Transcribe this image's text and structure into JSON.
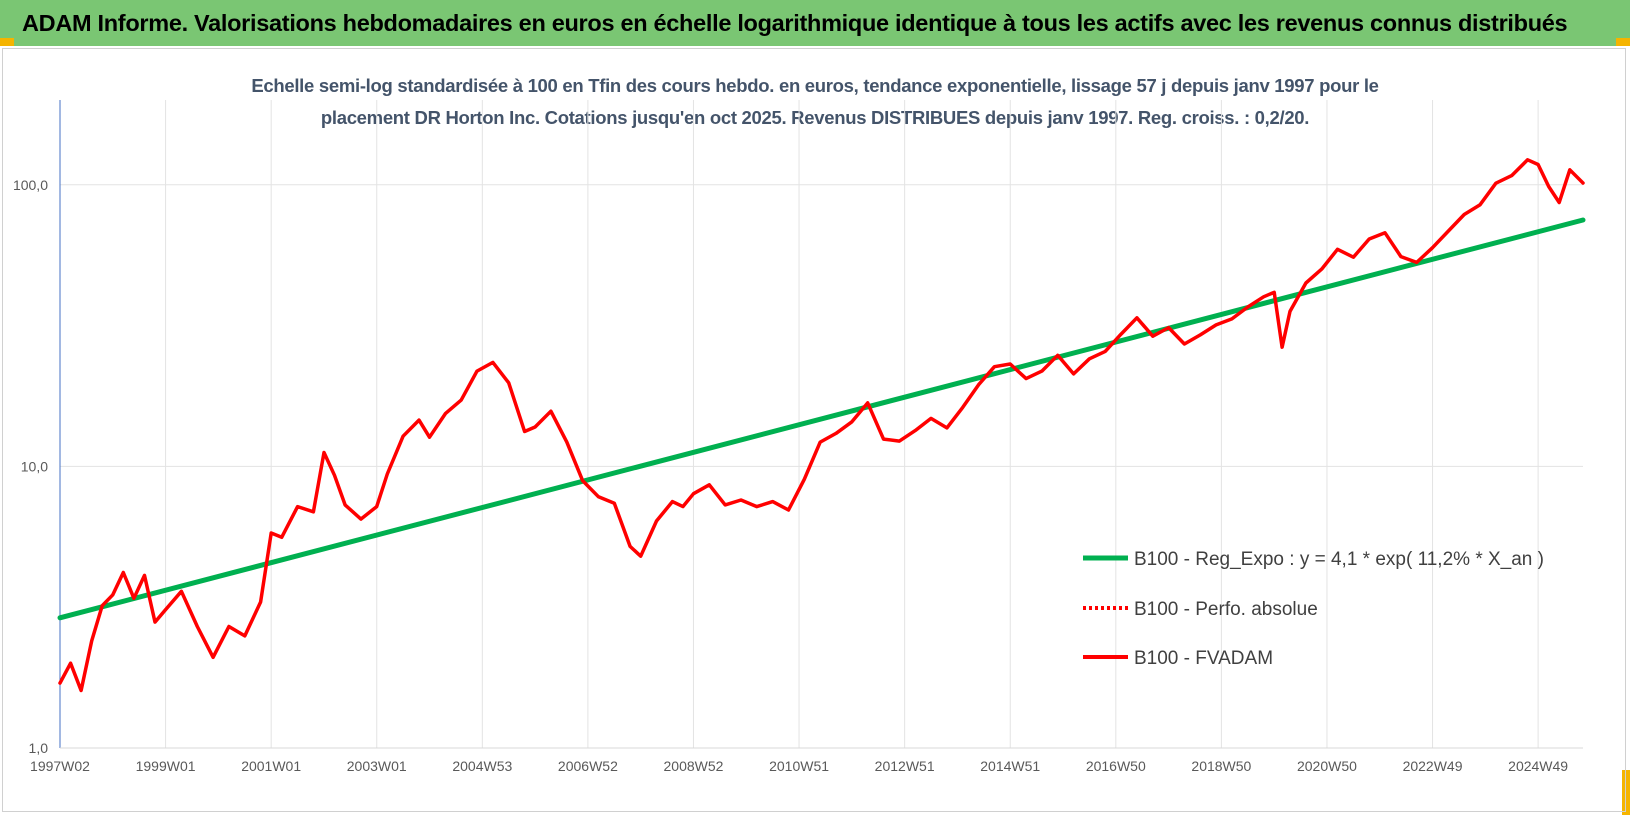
{
  "banner": {
    "title": "ADAM Informe. Valorisations hebdomadaires en euros en échelle logarithmique identique à tous les actifs avec les revenus connus distribués",
    "bg_color": "#7ac673"
  },
  "chart_data": {
    "type": "line",
    "title_line1": "Echelle semi-log standardisée à 100 en Tfin des cours hebdo. en euros, tendance exponentielle, lissage 57 j depuis janv 1997 pour le",
    "title_line2": "placement DR Horton Inc. Cotations jusqu'en oct 2025. Revenus DISTRIBUES depuis janv 1997. Reg. croiss. : 0,2/20.",
    "y_scale": "log",
    "ylim": [
      1,
      200
    ],
    "y_ticks": [
      {
        "value": 1,
        "label": "1,0"
      },
      {
        "value": 10,
        "label": "10,0"
      },
      {
        "value": 100,
        "label": "100,0"
      }
    ],
    "xlim": [
      1997.0,
      2025.85
    ],
    "x_ticks": [
      {
        "value": 1997.0,
        "label": "1997W02"
      },
      {
        "value": 1999.0,
        "label": "1999W01"
      },
      {
        "value": 2001.0,
        "label": "2001W01"
      },
      {
        "value": 2003.0,
        "label": "2003W01"
      },
      {
        "value": 2005.0,
        "label": "2004W53"
      },
      {
        "value": 2007.0,
        "label": "2006W52"
      },
      {
        "value": 2009.0,
        "label": "2008W52"
      },
      {
        "value": 2011.0,
        "label": "2010W51"
      },
      {
        "value": 2013.0,
        "label": "2012W51"
      },
      {
        "value": 2015.0,
        "label": "2014W51"
      },
      {
        "value": 2017.0,
        "label": "2016W50"
      },
      {
        "value": 2019.0,
        "label": "2018W50"
      },
      {
        "value": 2021.0,
        "label": "2020W50"
      },
      {
        "value": 2023.0,
        "label": "2022W49"
      },
      {
        "value": 2025.0,
        "label": "2024W49"
      }
    ],
    "grid": "vertical lines at x ticks, horizontal lines at y ticks",
    "legend_position": "lower-right",
    "series": [
      {
        "name": "B100 - Reg_Expo : y = 4,1 * exp( 11,2% *  X_an )",
        "style": "solid",
        "color": "#00b050",
        "x": [
          1997.0,
          2025.85
        ],
        "y": [
          2.9,
          75
        ]
      },
      {
        "name": "B100 - Perfo. absolue",
        "style": "dotted",
        "color": "#ff0000",
        "x": [],
        "y": []
      },
      {
        "name": "B100 - FVADAM",
        "style": "solid",
        "color": "#ff0000",
        "x": [
          1997.0,
          1997.2,
          1997.4,
          1997.6,
          1997.8,
          1998.0,
          1998.2,
          1998.4,
          1998.6,
          1998.8,
          1999.0,
          1999.3,
          1999.6,
          1999.9,
          2000.2,
          2000.5,
          2000.8,
          2001.0,
          2001.2,
          2001.5,
          2001.8,
          2002.0,
          2002.2,
          2002.4,
          2002.7,
          2003.0,
          2003.2,
          2003.5,
          2003.8,
          2004.0,
          2004.3,
          2004.6,
          2004.9,
          2005.2,
          2005.5,
          2005.8,
          2006.0,
          2006.3,
          2006.6,
          2006.9,
          2007.2,
          2007.5,
          2007.8,
          2008.0,
          2008.3,
          2008.6,
          2008.8,
          2009.0,
          2009.3,
          2009.6,
          2009.9,
          2010.2,
          2010.5,
          2010.8,
          2011.1,
          2011.4,
          2011.7,
          2012.0,
          2012.3,
          2012.6,
          2012.9,
          2013.2,
          2013.5,
          2013.8,
          2014.1,
          2014.4,
          2014.7,
          2015.0,
          2015.3,
          2015.6,
          2015.9,
          2016.2,
          2016.5,
          2016.8,
          2017.1,
          2017.4,
          2017.7,
          2018.0,
          2018.3,
          2018.6,
          2018.9,
          2019.2,
          2019.5,
          2019.8,
          2020.0,
          2020.15,
          2020.3,
          2020.6,
          2020.9,
          2021.2,
          2021.5,
          2021.8,
          2022.1,
          2022.4,
          2022.7,
          2023.0,
          2023.3,
          2023.6,
          2023.9,
          2024.2,
          2024.5,
          2024.8,
          2025.0,
          2025.2,
          2025.4,
          2025.6,
          2025.85
        ],
        "y": [
          1.7,
          2.0,
          1.6,
          2.4,
          3.2,
          3.5,
          4.2,
          3.4,
          4.1,
          2.8,
          3.1,
          3.6,
          2.7,
          2.1,
          2.7,
          2.5,
          3.3,
          5.8,
          5.6,
          7.2,
          6.9,
          11.2,
          9.3,
          7.3,
          6.5,
          7.2,
          9.4,
          12.8,
          14.6,
          12.7,
          15.4,
          17.2,
          21.8,
          23.4,
          19.8,
          13.3,
          13.8,
          15.7,
          12.2,
          8.9,
          7.8,
          7.4,
          5.2,
          4.8,
          6.4,
          7.5,
          7.2,
          8.0,
          8.6,
          7.3,
          7.6,
          7.2,
          7.5,
          7.0,
          9.0,
          12.2,
          13.1,
          14.4,
          16.8,
          12.5,
          12.3,
          13.4,
          14.8,
          13.7,
          16.2,
          19.5,
          22.6,
          23.1,
          20.5,
          21.8,
          24.8,
          21.3,
          24.1,
          25.6,
          29.5,
          33.7,
          29.0,
          31.1,
          27.2,
          29.3,
          31.8,
          33.4,
          36.8,
          40.0,
          41.5,
          26.5,
          35.5,
          44.8,
          50.2,
          59.0,
          55.3,
          64.2,
          67.5,
          55.6,
          53.0,
          59.8,
          68.5,
          78.4,
          85.0,
          101.3,
          107.8,
          122.7,
          118.0,
          98.6,
          86.5,
          113.0,
          101.5
        ]
      }
    ]
  }
}
